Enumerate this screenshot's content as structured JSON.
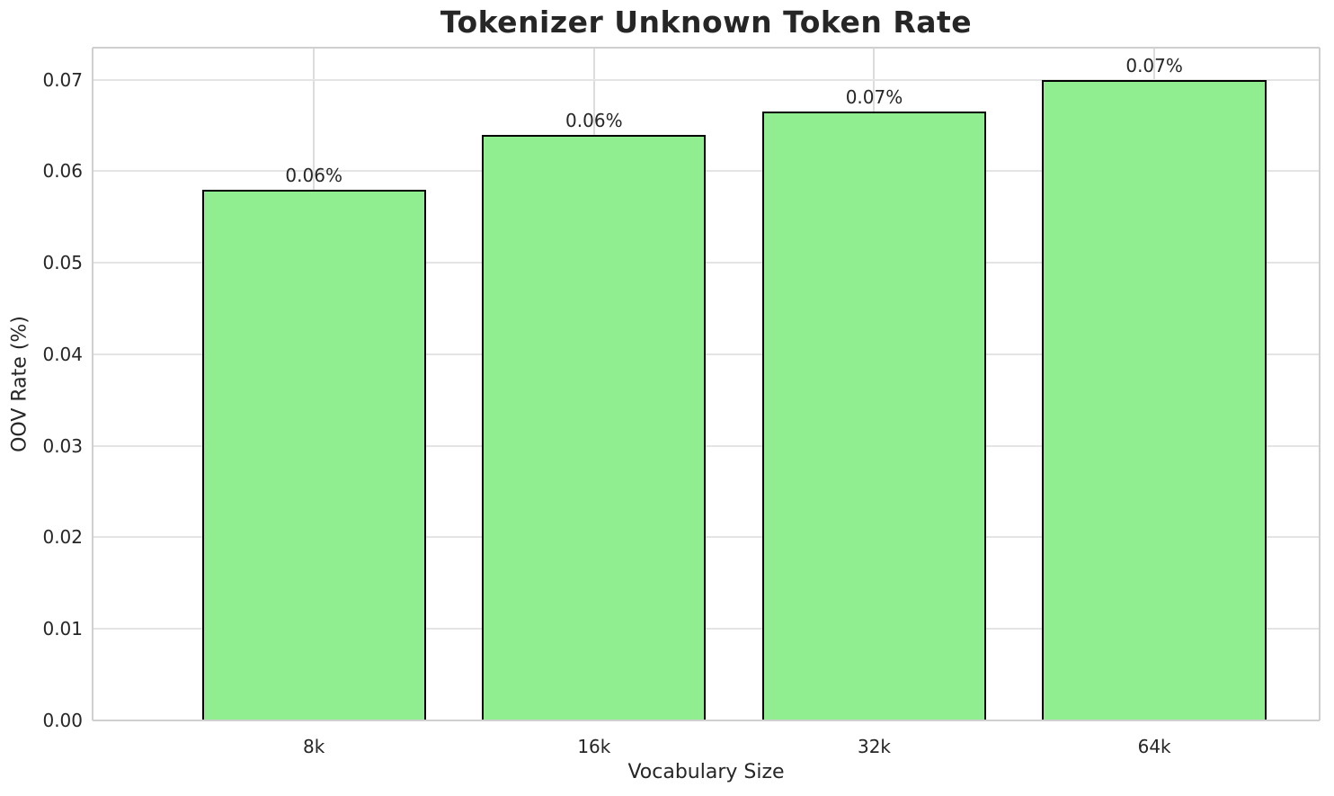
{
  "chart_data": {
    "type": "bar",
    "title": "Tokenizer Unknown Token Rate",
    "xlabel": "Vocabulary Size",
    "ylabel": "OOV Rate (%)",
    "categories": [
      "8k",
      "16k",
      "32k",
      "64k"
    ],
    "values": [
      0.058,
      0.064,
      0.0665,
      0.07
    ],
    "bar_labels": [
      "0.06%",
      "0.06%",
      "0.07%",
      "0.07%"
    ],
    "y_ticks": [
      {
        "value": 0.0,
        "label": "0.00"
      },
      {
        "value": 0.01,
        "label": "0.01"
      },
      {
        "value": 0.02,
        "label": "0.02"
      },
      {
        "value": 0.03,
        "label": "0.03"
      },
      {
        "value": 0.04,
        "label": "0.04"
      },
      {
        "value": 0.05,
        "label": "0.05"
      },
      {
        "value": 0.06,
        "label": "0.06"
      },
      {
        "value": 0.07,
        "label": "0.07"
      }
    ],
    "ylim": [
      0,
      0.0735
    ],
    "grid": true,
    "legend_position": "none",
    "colors": {
      "bar_fill": "#90EE90",
      "bar_edge": "#000000",
      "grid_h": "#e4e4e4",
      "grid_v": "#dcdcdc",
      "spine": "#cfcfcf",
      "text": "#262626",
      "background": "#ffffff"
    }
  }
}
